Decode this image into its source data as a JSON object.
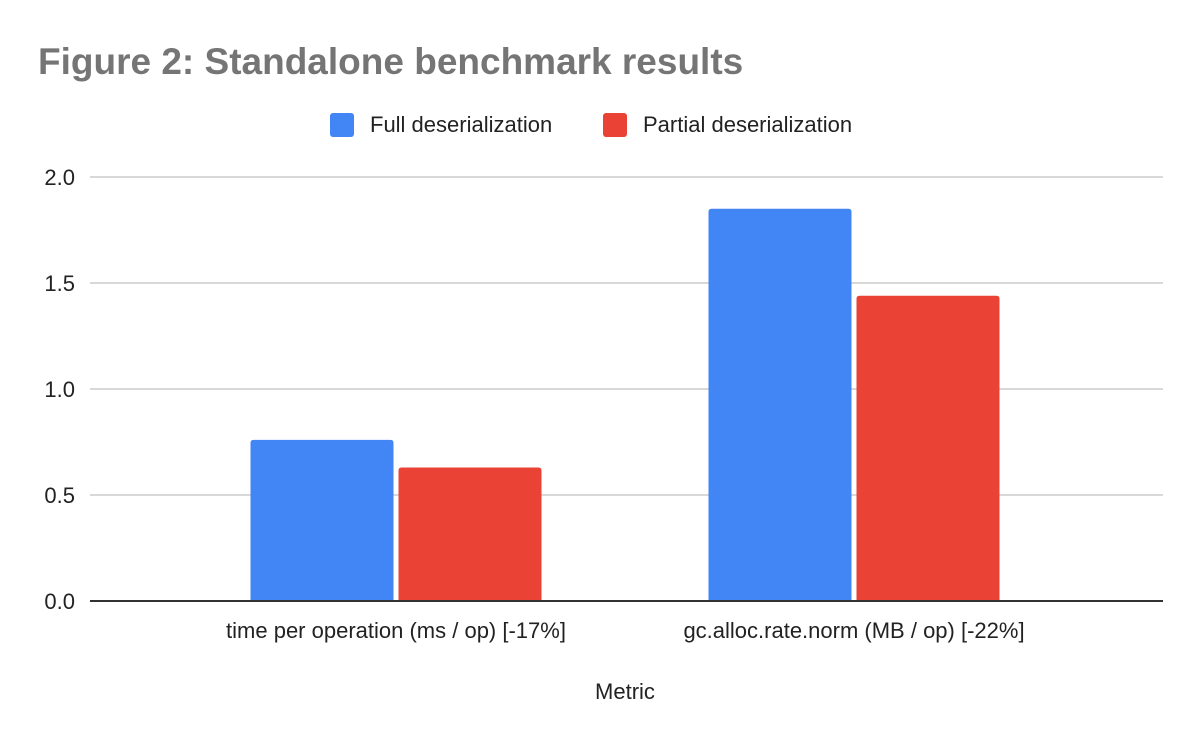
{
  "chart_data": {
    "type": "bar",
    "title": "Figure 2: Standalone benchmark results",
    "xlabel": "Metric",
    "ylabel": "",
    "categories": [
      "time per operation (ms / op) [-17%]",
      "gc.alloc.rate.norm (MB / op) [-22%]"
    ],
    "series": [
      {
        "name": "Full deserialization",
        "values": [
          0.76,
          1.85
        ],
        "color": "#4285f4"
      },
      {
        "name": "Partial deserialization",
        "values": [
          0.63,
          1.44
        ],
        "color": "#ea4335"
      }
    ],
    "ylim": [
      0,
      2.0
    ],
    "yticks": [
      "0.0",
      "0.5",
      "1.0",
      "1.5",
      "2.0"
    ],
    "grid": true,
    "legend_position": "top-center",
    "colors": {
      "title": "#757575",
      "grid": "#cccccc",
      "axis": "#333333",
      "text": "#222222"
    }
  }
}
